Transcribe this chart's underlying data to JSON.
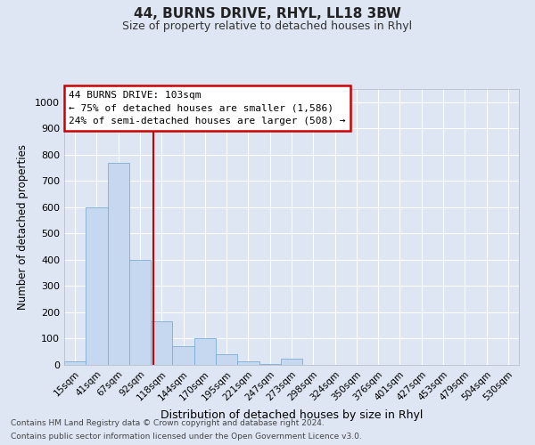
{
  "title": "44, BURNS DRIVE, RHYL, LL18 3BW",
  "subtitle": "Size of property relative to detached houses in Rhyl",
  "xlabel": "Distribution of detached houses by size in Rhyl",
  "ylabel": "Number of detached properties",
  "categories": [
    "15sqm",
    "41sqm",
    "67sqm",
    "92sqm",
    "118sqm",
    "144sqm",
    "170sqm",
    "195sqm",
    "221sqm",
    "247sqm",
    "273sqm",
    "298sqm",
    "324sqm",
    "350sqm",
    "376sqm",
    "401sqm",
    "427sqm",
    "453sqm",
    "479sqm",
    "504sqm",
    "530sqm"
  ],
  "bar_values": [
    15,
    600,
    770,
    400,
    165,
    70,
    100,
    40,
    15,
    5,
    25,
    0,
    0,
    0,
    0,
    0,
    0,
    0,
    0,
    0,
    0
  ],
  "bar_color": "#c5d8ef",
  "bar_edge_color": "#7aadd4",
  "background_color": "#dde6f2",
  "grid_color": "#ffffff",
  "ylim": [
    0,
    1050
  ],
  "yticks": [
    0,
    100,
    200,
    300,
    400,
    500,
    600,
    700,
    800,
    900,
    1000
  ],
  "annotation_text": "44 BURNS DRIVE: 103sqm\n← 75% of detached houses are smaller (1,586)\n24% of semi-detached houses are larger (508) →",
  "annotation_box_color": "#ffffff",
  "annotation_box_edge_color": "#cc0000",
  "red_line_x": 3.62,
  "footer_line1": "Contains HM Land Registry data © Crown copyright and database right 2024.",
  "footer_line2": "Contains public sector information licensed under the Open Government Licence v3.0."
}
